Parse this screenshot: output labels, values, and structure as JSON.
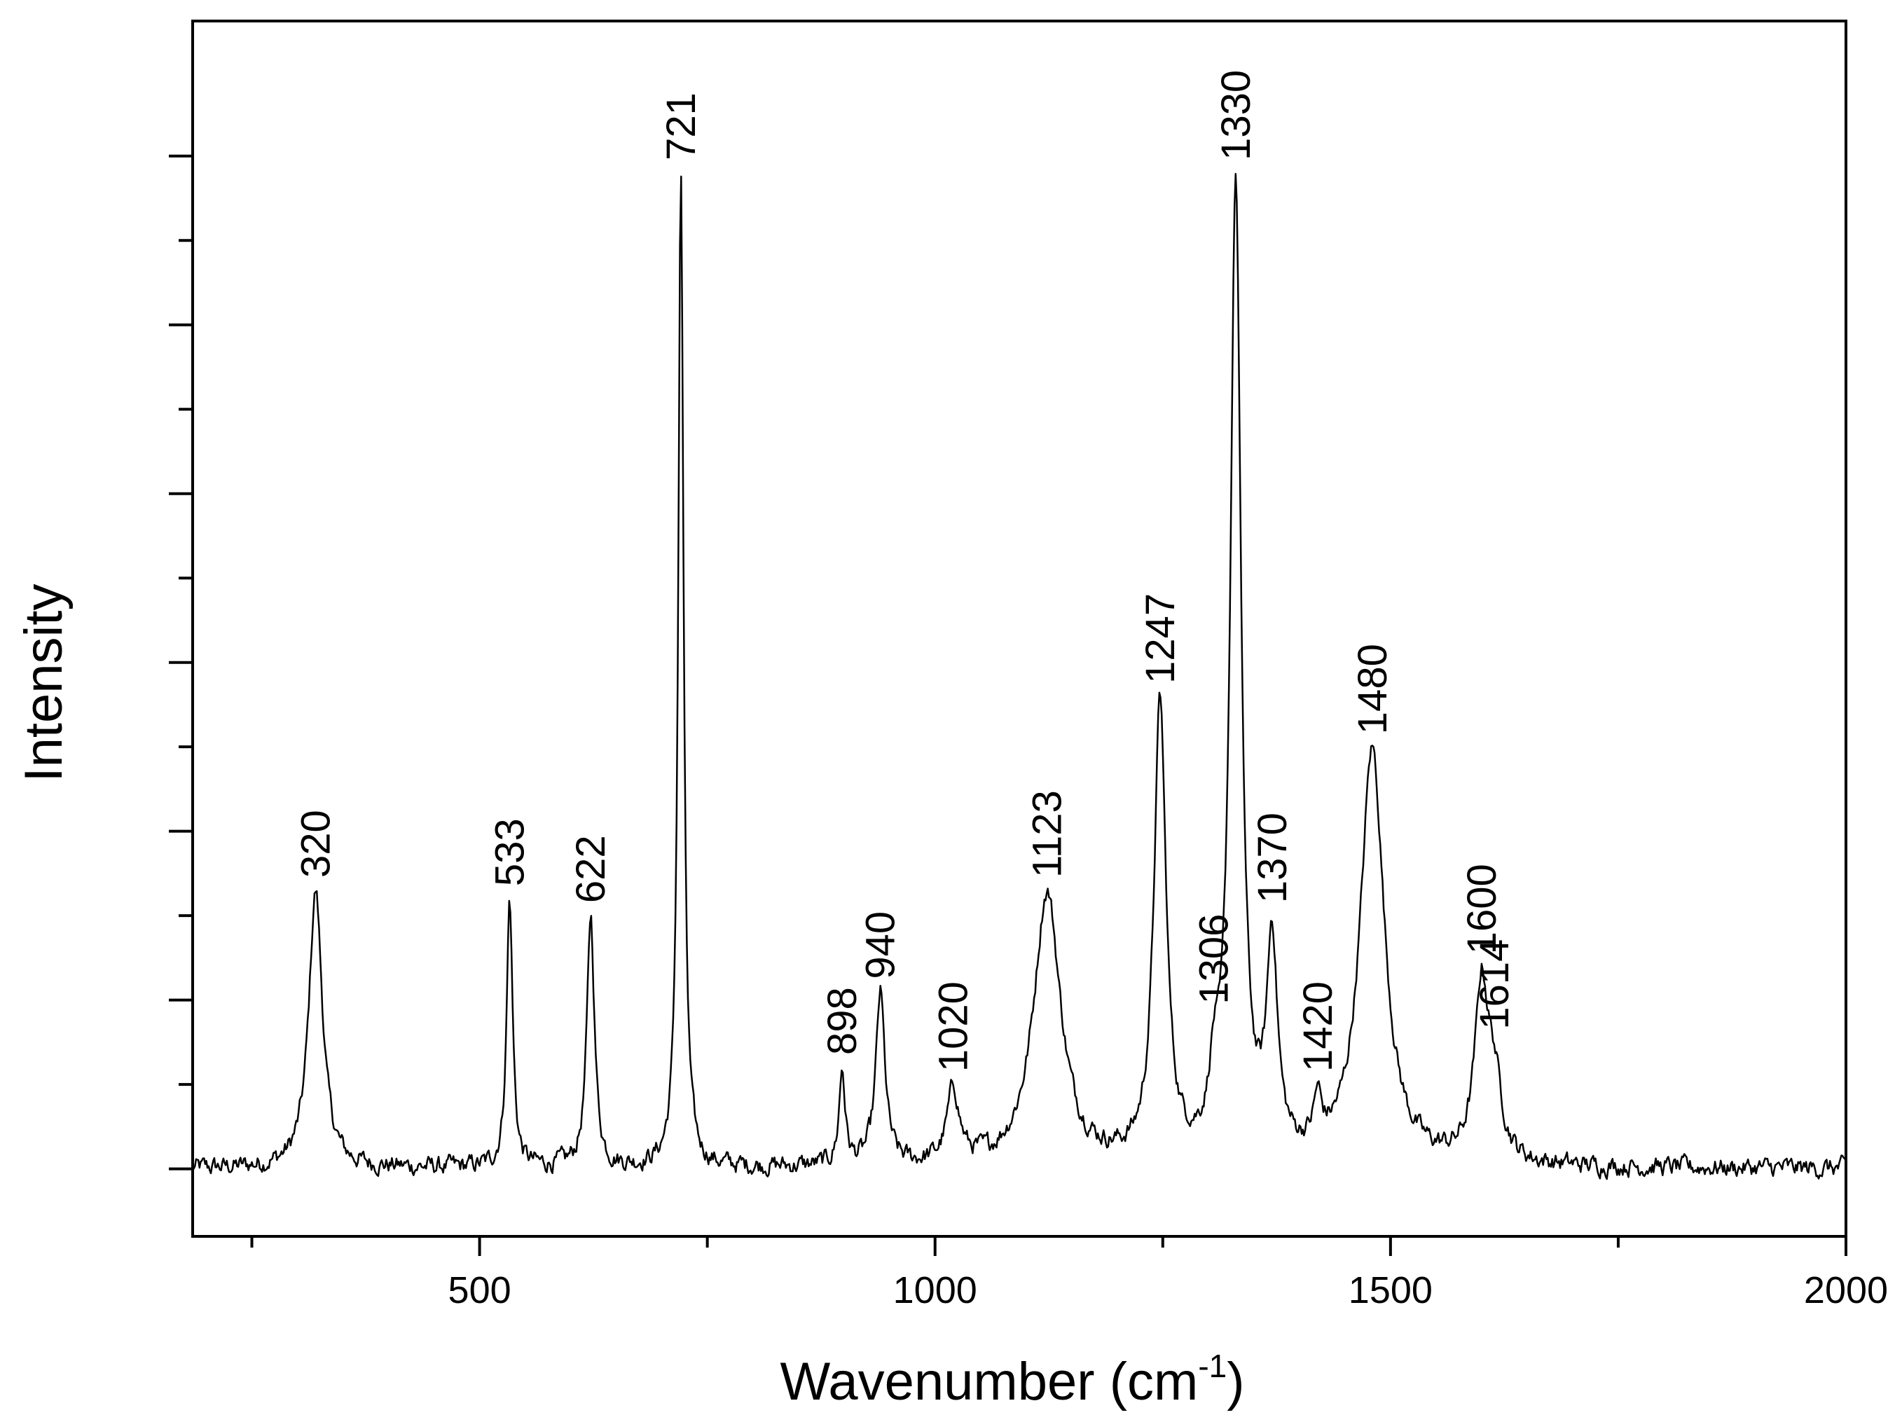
{
  "chart_data": {
    "type": "line",
    "title": "",
    "xlabel": "Wavenumber (cm",
    "xlabel_sup": "-1",
    "xlabel_end": ")",
    "ylabel": "Intensity",
    "xlim": [
      185,
      2000
    ],
    "ylim": [
      -0.04,
      0.68
    ],
    "x_ticks": [
      500,
      1000,
      1500,
      2000
    ],
    "x_tick_labels": [
      "500",
      "1000",
      "1500",
      "2000"
    ],
    "y_tick_labels_shown": false,
    "grid": false,
    "baseline": 0.0,
    "noise": 0.004,
    "peaks": [
      {
        "label": "320",
        "x": 320,
        "height": 0.165,
        "width": 9
      },
      {
        "label": "533",
        "x": 533,
        "height": 0.16,
        "width": 4
      },
      {
        "label": "622",
        "x": 622,
        "height": 0.15,
        "width": 5
      },
      {
        "label": "721",
        "x": 721,
        "height": 0.59,
        "width": 3.5
      },
      {
        "label": "898",
        "x": 898,
        "height": 0.06,
        "width": 4
      },
      {
        "label": "940",
        "x": 940,
        "height": 0.105,
        "width": 6
      },
      {
        "label": "1020",
        "x": 1020,
        "height": 0.05,
        "width": 8
      },
      {
        "label": "1123",
        "x": 1123,
        "height": 0.165,
        "width": 18
      },
      {
        "label": "1247",
        "x": 1247,
        "height": 0.28,
        "width": 8
      },
      {
        "label": "1306",
        "x": 1306,
        "height": 0.09,
        "width": 6
      },
      {
        "label": "1330",
        "x": 1330,
        "height": 0.59,
        "width": 7
      },
      {
        "label": "1370",
        "x": 1370,
        "height": 0.15,
        "width": 7
      },
      {
        "label": "1420",
        "x": 1420,
        "height": 0.05,
        "width": 5
      },
      {
        "label": "1480",
        "x": 1480,
        "height": 0.25,
        "width": 16
      },
      {
        "label": "1600",
        "x": 1600,
        "height": 0.12,
        "width": 9
      },
      {
        "label": "1614",
        "x": 1614,
        "height": 0.075,
        "width": 10
      }
    ]
  }
}
